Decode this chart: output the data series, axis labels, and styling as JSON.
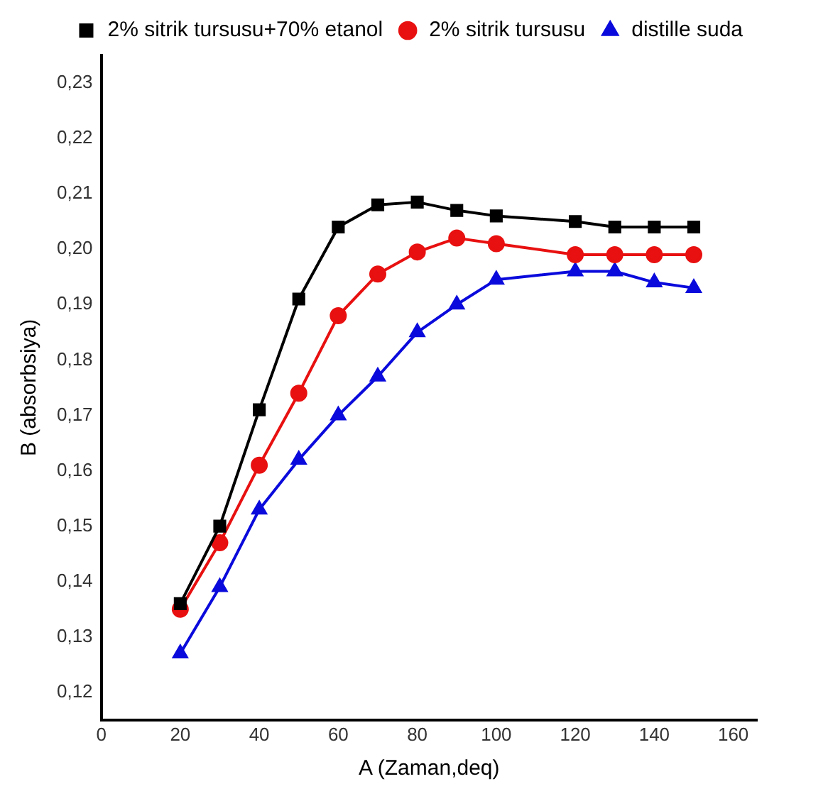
{
  "chart_data": {
    "type": "line",
    "xlabel": "A (Zaman,deq)",
    "ylabel": "B (absorbsiya)",
    "x": [
      20,
      30,
      40,
      50,
      60,
      70,
      80,
      90,
      100,
      120,
      130,
      140,
      150
    ],
    "series": [
      {
        "name": "2% sitrik tursusu+70% etanol",
        "color": "#000000",
        "marker": "square",
        "values": [
          0.136,
          0.15,
          0.171,
          0.191,
          0.204,
          0.208,
          0.2085,
          0.207,
          0.206,
          0.205,
          0.204,
          0.204,
          0.204
        ]
      },
      {
        "name": "2% sitrik tursusu",
        "color": "#e81010",
        "marker": "circle",
        "values": [
          0.135,
          0.147,
          0.161,
          0.174,
          0.188,
          0.1955,
          0.1995,
          0.202,
          0.201,
          0.199,
          0.199,
          0.199,
          0.199
        ]
      },
      {
        "name": "distille suda",
        "color": "#0a0adc",
        "marker": "triangle",
        "values": [
          0.127,
          0.139,
          0.153,
          0.162,
          0.17,
          0.177,
          0.185,
          0.19,
          0.1945,
          0.196,
          0.196,
          0.194,
          0.193
        ]
      }
    ],
    "xlim": [
      0,
      166
    ],
    "xticks": [
      0,
      20,
      40,
      60,
      80,
      100,
      120,
      140,
      160
    ],
    "ylim": [
      0.115,
      0.235
    ],
    "yticks": [
      {
        "value": 0.12,
        "label": "0,12"
      },
      {
        "value": 0.13,
        "label": "0,13"
      },
      {
        "value": 0.14,
        "label": "0,14"
      },
      {
        "value": 0.15,
        "label": "0,15"
      },
      {
        "value": 0.16,
        "label": "0,16"
      },
      {
        "value": 0.17,
        "label": "0,17"
      },
      {
        "value": 0.18,
        "label": "0,18"
      },
      {
        "value": 0.19,
        "label": "0,19"
      },
      {
        "value": 0.2,
        "label": "0,20"
      },
      {
        "value": 0.21,
        "label": "0,21"
      },
      {
        "value": 0.22,
        "label": "0,22"
      },
      {
        "value": 0.23,
        "label": "0,23"
      }
    ],
    "grid": false,
    "legend": "top right",
    "line_style": "solid"
  }
}
